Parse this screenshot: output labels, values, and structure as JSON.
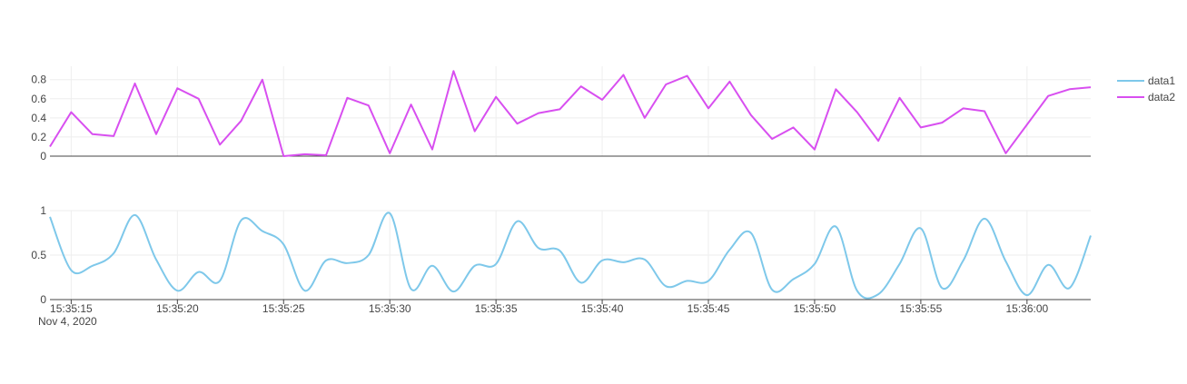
{
  "chart_data": [
    {
      "type": "line",
      "panel": "top",
      "series": [
        {
          "name": "data2",
          "color": "#d84ff0",
          "shape": "linear",
          "values": [
            0.1,
            0.46,
            0.23,
            0.21,
            0.76,
            0.23,
            0.71,
            0.6,
            0.12,
            0.37,
            0.8,
            0.0,
            0.02,
            0.01,
            0.61,
            0.53,
            0.03,
            0.54,
            0.07,
            0.89,
            0.26,
            0.62,
            0.34,
            0.45,
            0.49,
            0.73,
            0.59,
            0.85,
            0.4,
            0.75,
            0.84,
            0.5,
            0.78,
            0.43,
            0.18,
            0.3,
            0.07,
            0.7,
            0.46,
            0.16,
            0.61,
            0.3,
            0.35,
            0.5,
            0.47,
            0.03,
            0.33,
            0.63,
            0.7,
            0.72
          ]
        }
      ],
      "ylim": [
        0,
        0.94
      ],
      "yticks": [
        "0",
        "0.2",
        "0.4",
        "0.6",
        "0.8"
      ],
      "ytick_values": [
        0,
        0.2,
        0.4,
        0.6,
        0.8
      ],
      "grid": true
    },
    {
      "type": "line",
      "panel": "bottom",
      "series": [
        {
          "name": "data1",
          "color": "#7ec8ea",
          "shape": "spline",
          "values": [
            0.93,
            0.33,
            0.38,
            0.52,
            0.95,
            0.45,
            0.1,
            0.31,
            0.21,
            0.89,
            0.77,
            0.62,
            0.1,
            0.44,
            0.41,
            0.5,
            0.97,
            0.12,
            0.38,
            0.09,
            0.38,
            0.4,
            0.88,
            0.58,
            0.55,
            0.19,
            0.44,
            0.42,
            0.45,
            0.15,
            0.21,
            0.21,
            0.56,
            0.75,
            0.11,
            0.23,
            0.4,
            0.82,
            0.1,
            0.06,
            0.4,
            0.8,
            0.13,
            0.44,
            0.91,
            0.43,
            0.05,
            0.39,
            0.13,
            0.72
          ]
        }
      ],
      "ylim": [
        0,
        1.0
      ],
      "yticks": [
        "0",
        "0.5",
        "1"
      ],
      "ytick_values": [
        0,
        0.5,
        1
      ],
      "grid": true
    }
  ],
  "x_axis": {
    "start": "2020-11-04 15:35:14",
    "end": "2020-11-04 15:36:03",
    "tick_values": [
      "15:35:15",
      "15:35:20",
      "15:35:25",
      "15:35:30",
      "15:35:35",
      "15:35:40",
      "15:35:45",
      "15:35:50",
      "15:35:55",
      "15:36:00"
    ],
    "tick_labels": [
      "15:35:15",
      "15:35:20",
      "15:35:25",
      "15:35:30",
      "15:35:35",
      "15:35:40",
      "15:35:45",
      "15:35:50",
      "15:35:55",
      "15:36:00"
    ],
    "date_label": "Nov 4, 2020"
  },
  "legend": {
    "position": "top-right",
    "items": [
      {
        "name": "data1",
        "color": "#7ec8ea"
      },
      {
        "name": "data2",
        "color": "#d84ff0"
      }
    ]
  }
}
